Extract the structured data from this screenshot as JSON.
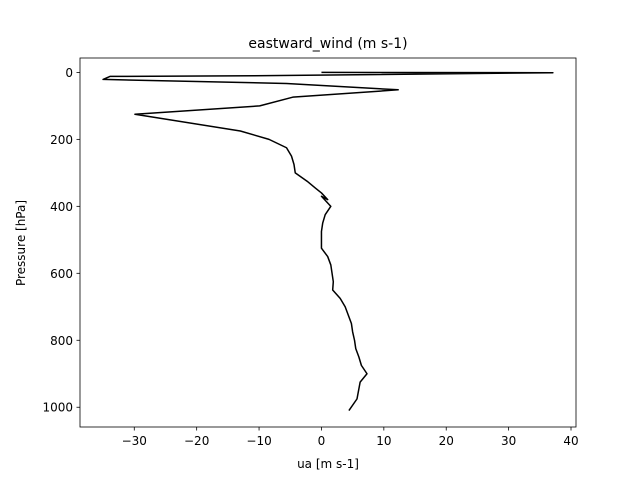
{
  "chart_data": {
    "type": "line",
    "title": "eastward_wind (m s-1)",
    "xlabel": "ua [m s-1]",
    "ylabel": "Pressure [hPa]",
    "xlim": [
      -38.7,
      40.8
    ],
    "ylim": [
      1059,
      -43
    ],
    "y_inverted": true,
    "grid": false,
    "xticks": [
      -30,
      -20,
      -10,
      0,
      10,
      20,
      30,
      40
    ],
    "yticks": [
      0,
      200,
      400,
      600,
      800,
      1000
    ],
    "xtick_labels": [
      "−30",
      "−20",
      "−10",
      "0",
      "10",
      "20",
      "30",
      "40"
    ],
    "ytick_labels": [
      "0",
      "200",
      "400",
      "600",
      "800",
      "1000"
    ],
    "series": [
      {
        "color": "#000000",
        "x": [
          0.0,
          37.1,
          -10.7,
          -33.9,
          -35.0,
          -5.6,
          12.3,
          -4.6,
          -9.9,
          -29.9,
          -13.0,
          -8.4,
          -5.6,
          -4.8,
          -4.4,
          -4.2,
          -2.3,
          -1.0,
          0.0,
          1.0,
          0.0,
          1.5,
          0.6,
          0.2,
          0.0,
          0.0,
          0.0,
          1.0,
          1.5,
          1.7,
          1.9,
          1.8,
          3.0,
          3.8,
          4.3,
          4.8,
          5.0,
          5.3,
          5.5,
          6.0,
          6.4,
          7.3,
          6.2,
          5.7,
          4.4
        ],
        "y": [
          0,
          1,
          10,
          12,
          21,
          33,
          52,
          74,
          100,
          125,
          175,
          200,
          225,
          250,
          275,
          300,
          325,
          345,
          360,
          380,
          370,
          400,
          425,
          450,
          475,
          500,
          525,
          550,
          575,
          600,
          625,
          650,
          675,
          700,
          725,
          750,
          775,
          800,
          825,
          850,
          875,
          900,
          925,
          975,
          1010
        ]
      }
    ]
  }
}
